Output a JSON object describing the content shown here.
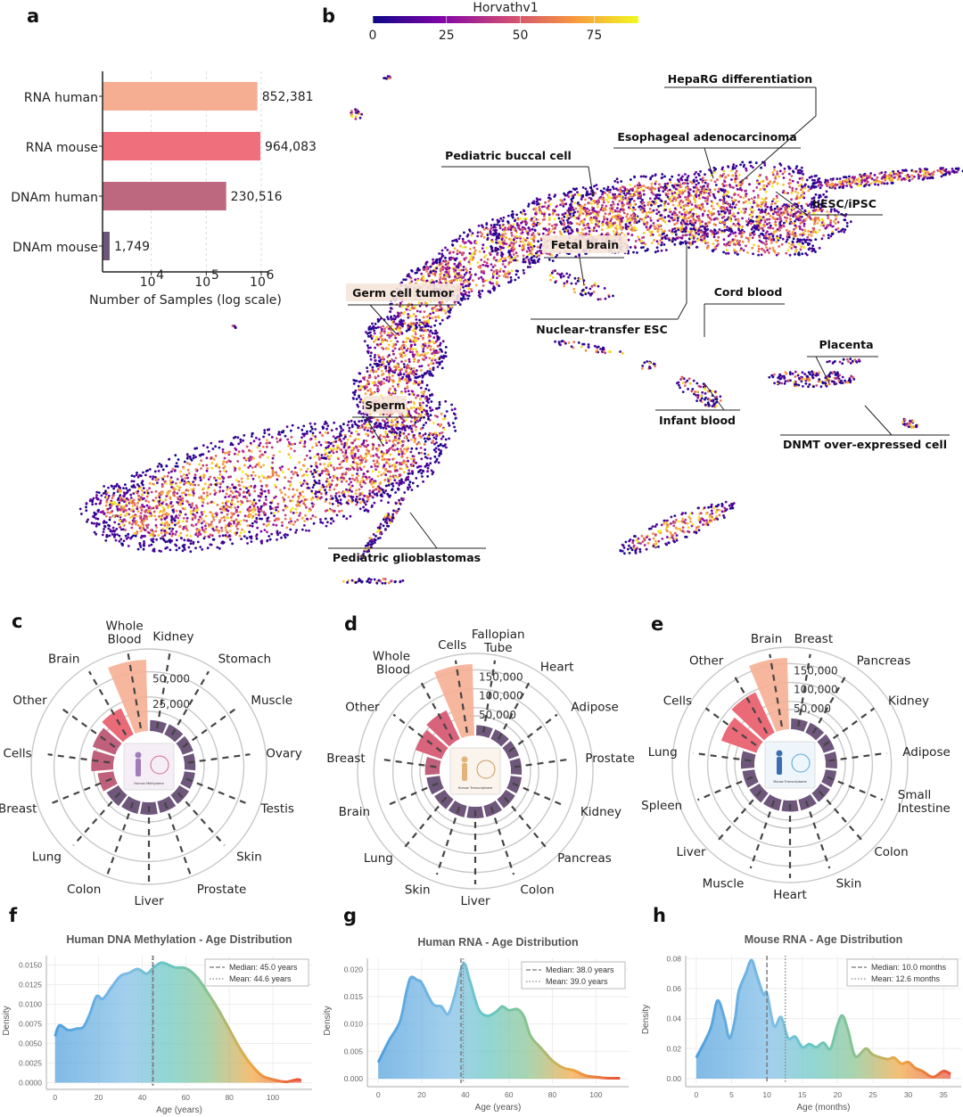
{
  "panel_labels": {
    "a": "a",
    "b": "b",
    "c": "c",
    "d": "d",
    "e": "e",
    "f": "f",
    "g": "g",
    "h": "h"
  },
  "chart_data": [
    {
      "id": "a",
      "type": "bar",
      "orientation": "horizontal",
      "categories": [
        "RNA human",
        "RNA mouse",
        "DNAm human",
        "DNAm mouse"
      ],
      "values": [
        852381,
        964083,
        230516,
        1749
      ],
      "value_labels": [
        "852,381",
        "964,083",
        "230,516",
        "1,749"
      ],
      "colors": [
        "#f6ae93",
        "#ef6f7d",
        "#bd687f",
        "#6d5479"
      ],
      "xlabel": "Number of Samples (log scale)",
      "xscale": "log",
      "xlim": [
        1300,
        1300000
      ],
      "xticks": [
        {
          "value": 10000,
          "base": "10",
          "exp": "4"
        },
        {
          "value": 100000,
          "base": "10",
          "exp": "5"
        },
        {
          "value": 1000000,
          "base": "10",
          "exp": "6"
        }
      ],
      "grid": true
    },
    {
      "id": "b",
      "type": "scatter",
      "colorbar": {
        "title": "Horvathv1",
        "range": [
          0,
          90
        ],
        "ticks": [
          "0",
          "25",
          "50",
          "75"
        ],
        "tick_values": [
          0,
          25,
          50,
          75
        ],
        "colormap": [
          "#0d0887",
          "#7e03a8",
          "#cc4778",
          "#f89540",
          "#f0f921"
        ]
      },
      "annotations": [
        "HepaRG differentiation",
        "Esophageal adenocarcinoma",
        "Pediatric buccal cell",
        "hESC/iPSC",
        "Fetal brain",
        "Germ cell tumor",
        "Cord blood",
        "Nuclear-transfer ESC",
        "Placenta",
        "Sperm",
        "Infant blood",
        "DNMT over-expressed cell",
        "Pediatric glioblastomas"
      ]
    },
    {
      "id": "c",
      "type": "radial-bar",
      "categories": [
        "Whole Blood",
        "Kidney",
        "Stomach",
        "Muscle",
        "Ovary",
        "Testis",
        "Skin",
        "Prostate",
        "Liver",
        "Colon",
        "Lung",
        "Breast",
        "Cells",
        "Other",
        "Brain"
      ],
      "values": [
        62000,
        2000,
        2500,
        2500,
        2000,
        2000,
        2500,
        3000,
        3500,
        4000,
        5000,
        7000,
        13000,
        15000,
        20000
      ],
      "rings": [
        {
          "value": 25000,
          "label": "25,000"
        },
        {
          "value": 50000,
          "label": "50,000"
        }
      ],
      "center_caption": "Human Methylome"
    },
    {
      "id": "d",
      "type": "radial-bar",
      "categories": [
        "Cells",
        "Fallopian Tube",
        "Heart",
        "Adipose",
        "Prostate",
        "Kidney",
        "Pancreas",
        "Colon",
        "Liver",
        "Skin",
        "Lung",
        "Brain",
        "Breast",
        "Other",
        "Whole Blood"
      ],
      "values": [
        165000,
        4000,
        5000,
        5000,
        5000,
        6000,
        6000,
        7000,
        7000,
        8000,
        9000,
        12000,
        15000,
        50000,
        60000
      ],
      "rings": [
        {
          "value": 50000,
          "label": "50,000"
        },
        {
          "value": 100000,
          "label": "100,000"
        },
        {
          "value": 150000,
          "label": "150,000"
        }
      ],
      "center_caption": "Human Transcriptome"
    },
    {
      "id": "e",
      "type": "radial-bar",
      "categories": [
        "Brain",
        "Breast",
        "Pancreas",
        "Kidney",
        "Adipose",
        "Small Intestine",
        "Colon",
        "Skin",
        "Heart",
        "Muscle",
        "Liver",
        "Spleen",
        "Lung",
        "Cells",
        "Other"
      ],
      "values": [
        165000,
        5000,
        6000,
        7000,
        7000,
        6000,
        6000,
        6000,
        6000,
        7000,
        8000,
        9000,
        12000,
        75000,
        95000
      ],
      "rings": [
        {
          "value": 50000,
          "label": "50,000"
        },
        {
          "value": 100000,
          "label": "100,000"
        },
        {
          "value": 150000,
          "label": "150,000"
        }
      ],
      "center_caption": "Mouse Transcriptome"
    },
    {
      "id": "f",
      "type": "area",
      "title": "Human DNA Methylation - Age Distribution",
      "xlabel": "Age (years)",
      "ylabel": "Density",
      "xlim": [
        -4,
        118
      ],
      "ylim": [
        -0.0004,
        0.0162
      ],
      "xticks": [
        0,
        20,
        40,
        60,
        80,
        100
      ],
      "yticks": [
        "0.0000",
        "0.0025",
        "0.0050",
        "0.0075",
        "0.0100",
        "0.0125",
        "0.0150"
      ],
      "x": [
        0,
        2,
        6,
        10,
        13,
        16,
        19,
        22,
        26,
        30,
        34,
        38,
        42,
        45,
        49,
        55,
        60,
        65,
        70,
        75,
        80,
        85,
        90,
        95,
        100,
        106,
        111,
        113
      ],
      "y": [
        0.0059,
        0.0073,
        0.0067,
        0.0069,
        0.0071,
        0.0088,
        0.011,
        0.0107,
        0.0122,
        0.0136,
        0.014,
        0.0145,
        0.0139,
        0.0146,
        0.0153,
        0.0147,
        0.0146,
        0.0135,
        0.0115,
        0.0093,
        0.0068,
        0.0043,
        0.0023,
        0.0009,
        0.0004,
        0.0001,
        0.0004,
        0.0003
      ],
      "median": 45.0,
      "mean": 44.6,
      "legend": [
        "Median: 45.0 years",
        "Mean: 44.6 years"
      ]
    },
    {
      "id": "g",
      "type": "area",
      "title": "Human RNA - Age Distribution",
      "xlabel": "Age (years)",
      "ylabel": "Density",
      "xlim": [
        -5,
        115
      ],
      "ylim": [
        -0.0008,
        0.022
      ],
      "xticks": [
        0,
        20,
        40,
        60,
        80,
        100
      ],
      "yticks": [
        "0.000",
        "0.005",
        "0.010",
        "0.015",
        "0.020"
      ],
      "x": [
        0,
        5,
        10,
        13,
        15,
        18,
        20,
        25,
        29,
        32,
        35,
        39,
        42,
        46,
        50,
        54,
        57,
        60,
        64,
        67,
        70,
        75,
        80,
        85,
        90,
        95,
        100,
        105,
        111
      ],
      "y": [
        0.003,
        0.007,
        0.0105,
        0.016,
        0.0185,
        0.018,
        0.0175,
        0.0137,
        0.0132,
        0.0118,
        0.015,
        0.021,
        0.018,
        0.0128,
        0.0115,
        0.0122,
        0.0132,
        0.0125,
        0.0127,
        0.0113,
        0.0078,
        0.0055,
        0.0033,
        0.002,
        0.0015,
        0.0006,
        0.0003,
        0.0001,
        0.0001
      ],
      "median": 38.0,
      "mean": 39.0,
      "legend": [
        "Median: 38.0 years",
        "Mean: 39.0 years"
      ]
    },
    {
      "id": "h",
      "type": "area",
      "title": "Mouse RNA - Age Distribution",
      "xlabel": "Age (months)",
      "ylabel": "Density",
      "xlim": [
        -1.5,
        37.5
      ],
      "ylim": [
        -0.003,
        0.082
      ],
      "xticks": [
        0,
        5,
        10,
        15,
        20,
        25,
        30,
        35
      ],
      "yticks": [
        "0.00",
        "0.02",
        "0.04",
        "0.06",
        "0.08"
      ],
      "x": [
        0,
        2,
        3,
        4,
        4.7,
        5.5,
        6,
        7,
        7.8,
        8.5,
        9.5,
        10,
        11,
        12,
        13,
        14,
        15,
        16,
        17,
        18,
        19,
        20,
        20.7,
        21.5,
        22.5,
        24,
        25,
        27,
        28,
        29,
        30,
        31,
        32,
        33.5,
        35,
        36
      ],
      "y": [
        0.014,
        0.033,
        0.052,
        0.04,
        0.027,
        0.04,
        0.058,
        0.07,
        0.079,
        0.07,
        0.056,
        0.057,
        0.035,
        0.041,
        0.027,
        0.028,
        0.021,
        0.023,
        0.021,
        0.024,
        0.02,
        0.036,
        0.042,
        0.032,
        0.015,
        0.02,
        0.016,
        0.013,
        0.014,
        0.01,
        0.011,
        0.007,
        0.005,
        0.001,
        0.005,
        0.003
      ],
      "median": 10.0,
      "mean": 12.6,
      "legend": [
        "Median: 10.0 months",
        "Mean: 12.6 months"
      ]
    }
  ]
}
